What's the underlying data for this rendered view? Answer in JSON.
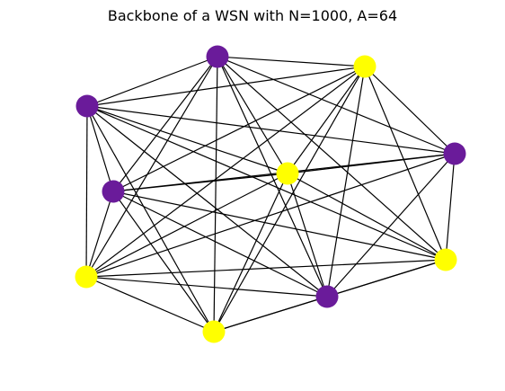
{
  "figure": {
    "title": "Backbone of a WSN with N=1000, A=64"
  },
  "graph": {
    "edge_color": "#000000",
    "node_colors": {
      "purple": "#6a1b9a",
      "yellow": "#ffff00"
    },
    "nodes": [
      {
        "id": "n1",
        "color": "purple"
      },
      {
        "id": "n2",
        "color": "yellow"
      },
      {
        "id": "n3",
        "color": "purple"
      },
      {
        "id": "n4",
        "color": "purple"
      },
      {
        "id": "n5",
        "color": "yellow"
      },
      {
        "id": "n6",
        "color": "purple"
      },
      {
        "id": "n7",
        "color": "yellow"
      },
      {
        "id": "n8",
        "color": "yellow"
      },
      {
        "id": "n9",
        "color": "purple"
      },
      {
        "id": "n10",
        "color": "yellow"
      }
    ],
    "edges": [
      [
        "n1",
        "n2"
      ],
      [
        "n1",
        "n3"
      ],
      [
        "n1",
        "n4"
      ],
      [
        "n1",
        "n5"
      ],
      [
        "n1",
        "n6"
      ],
      [
        "n1",
        "n7"
      ],
      [
        "n1",
        "n8"
      ],
      [
        "n1",
        "n9"
      ],
      [
        "n1",
        "n10"
      ],
      [
        "n2",
        "n3"
      ],
      [
        "n2",
        "n4"
      ],
      [
        "n2",
        "n5"
      ],
      [
        "n2",
        "n6"
      ],
      [
        "n2",
        "n7"
      ],
      [
        "n2",
        "n8"
      ],
      [
        "n2",
        "n9"
      ],
      [
        "n2",
        "n10"
      ],
      [
        "n3",
        "n4"
      ],
      [
        "n3",
        "n5"
      ],
      [
        "n3",
        "n6"
      ],
      [
        "n3",
        "n7"
      ],
      [
        "n3",
        "n8"
      ],
      [
        "n3",
        "n9"
      ],
      [
        "n3",
        "n10"
      ],
      [
        "n4",
        "n5"
      ],
      [
        "n4",
        "n6"
      ],
      [
        "n4",
        "n7"
      ],
      [
        "n4",
        "n8"
      ],
      [
        "n4",
        "n9"
      ],
      [
        "n5",
        "n6"
      ],
      [
        "n5",
        "n7"
      ],
      [
        "n5",
        "n8"
      ],
      [
        "n5",
        "n9"
      ],
      [
        "n5",
        "n10"
      ],
      [
        "n6",
        "n7"
      ],
      [
        "n6",
        "n8"
      ],
      [
        "n6",
        "n9"
      ],
      [
        "n6",
        "n10"
      ],
      [
        "n7",
        "n8"
      ],
      [
        "n7",
        "n9"
      ],
      [
        "n7",
        "n10"
      ],
      [
        "n8",
        "n9"
      ],
      [
        "n8",
        "n10"
      ],
      [
        "n9",
        "n10"
      ]
    ]
  }
}
